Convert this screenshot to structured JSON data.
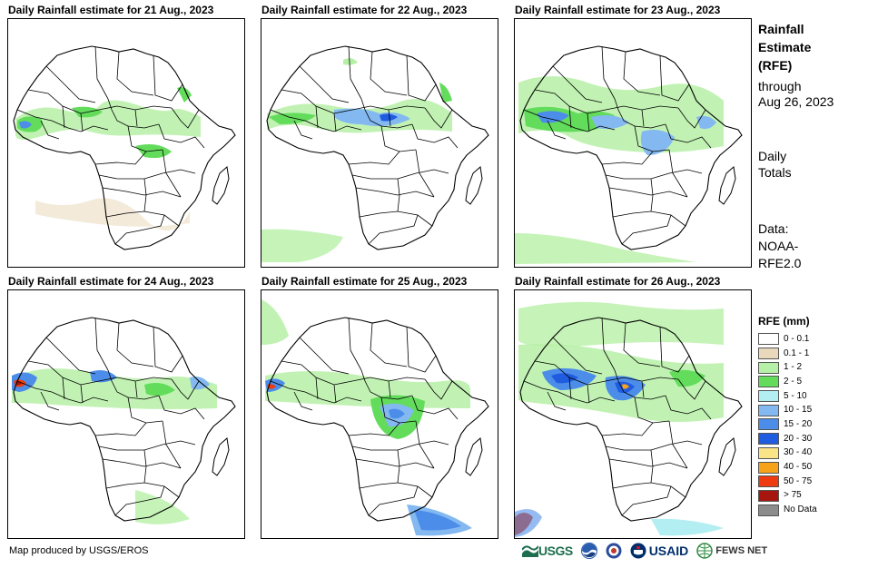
{
  "panels": [
    {
      "id": "p1",
      "title": "Daily Rainfall estimate for 21 Aug., 2023",
      "date": "21 Aug., 2023"
    },
    {
      "id": "p2",
      "title": "Daily Rainfall estimate for 22 Aug., 2023",
      "date": "22 Aug., 2023"
    },
    {
      "id": "p3",
      "title": "Daily Rainfall estimate for 23 Aug., 2023",
      "date": "23 Aug., 2023"
    },
    {
      "id": "p4",
      "title": "Daily Rainfall estimate for 24 Aug., 2023",
      "date": "24 Aug., 2023"
    },
    {
      "id": "p5",
      "title": "Daily Rainfall estimate for 25 Aug., 2023",
      "date": "25 Aug., 2023"
    },
    {
      "id": "p6",
      "title": "Daily Rainfall estimate for 26 Aug., 2023",
      "date": "26 Aug., 2023"
    }
  ],
  "side": {
    "title_line1": "Rainfall",
    "title_line2": "Estimate",
    "title_line3": "(RFE)",
    "through": "through",
    "through_date": "Aug 26, 2023",
    "totals_line1": "Daily",
    "totals_line2": "Totals",
    "data_line1": "Data:",
    "data_line2": "NOAA-",
    "data_line3": "RFE2.0"
  },
  "legend": {
    "title": "RFE (mm)",
    "items": [
      {
        "label": "0 - 0.1",
        "color": "#ffffff"
      },
      {
        "label": "0.1 - 1",
        "color": "#ead8bc"
      },
      {
        "label": "1 - 2",
        "color": "#b6f0a6"
      },
      {
        "label": "2 - 5",
        "color": "#63dc5c"
      },
      {
        "label": "5 - 10",
        "color": "#b3eef2"
      },
      {
        "label": "10 - 15",
        "color": "#83b9f0"
      },
      {
        "label": "15 - 20",
        "color": "#4c8dea"
      },
      {
        "label": "20 - 30",
        "color": "#1f5ce0"
      },
      {
        "label": "30 - 40",
        "color": "#fae488"
      },
      {
        "label": "40 - 50",
        "color": "#f7a21b"
      },
      {
        "label": "50 - 75",
        "color": "#ee3b0f"
      },
      {
        "label": "> 75",
        "color": "#a6160f"
      },
      {
        "label": "No Data",
        "color": "#8c8c8c"
      }
    ]
  },
  "credit": "Map produced by USGS/EROS",
  "logos": {
    "usgs": "USGS",
    "usaid": "USAID",
    "fews": "FEWS NET"
  }
}
